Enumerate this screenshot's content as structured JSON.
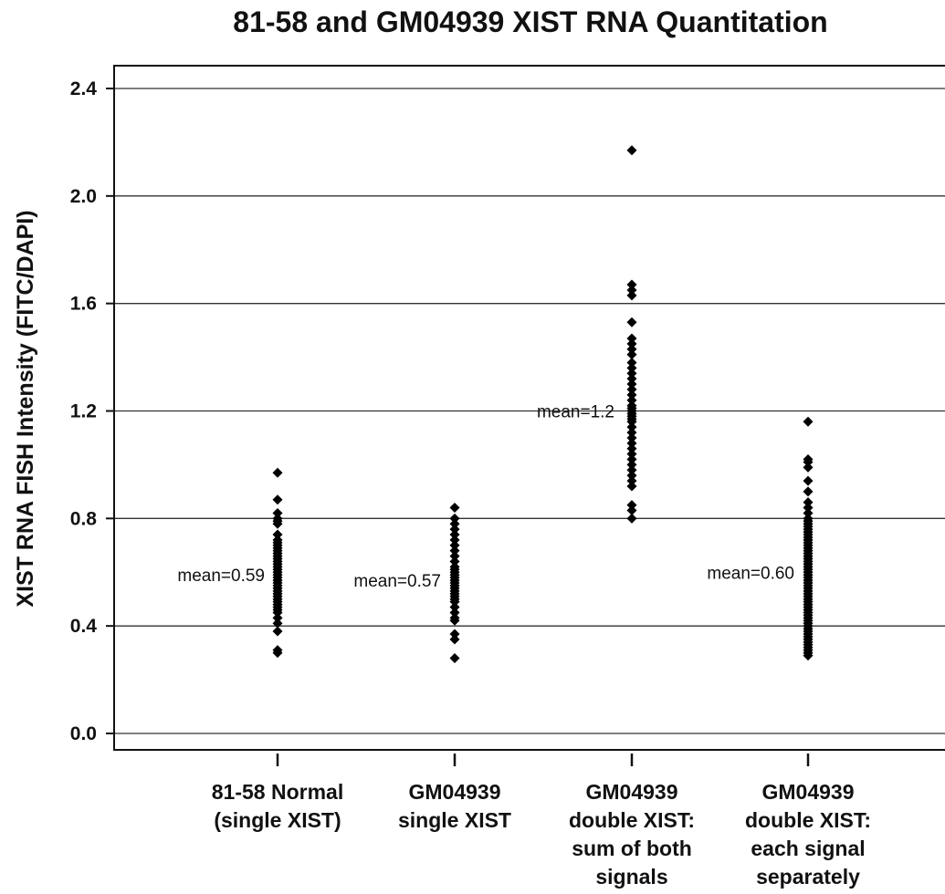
{
  "chart_data": {
    "type": "scatter",
    "title": "81-58 and GM04939 XIST RNA Quantitation",
    "ylabel": "XIST RNA FISH Intensity (FITC/DAPI)",
    "xlabel": "",
    "ylim": [
      0,
      2.4
    ],
    "yticks": [
      "0.0",
      "0.4",
      "0.8",
      "1.2",
      "1.6",
      "2.0",
      "2.4"
    ],
    "grid": true,
    "categories": [
      {
        "lines": [
          "81-58 Normal",
          "(single XIST)"
        ]
      },
      {
        "lines": [
          "GM04939",
          "single XIST"
        ]
      },
      {
        "lines": [
          "GM04939",
          "double XIST:",
          "sum of both",
          "signals"
        ]
      },
      {
        "lines": [
          "GM04939",
          "double XIST:",
          "each signal",
          "separately"
        ]
      }
    ],
    "series": [
      {
        "mean_label": "mean=0.59",
        "mean": 0.59,
        "values": [
          0.97,
          0.87,
          0.82,
          0.8,
          0.79,
          0.78,
          0.74,
          0.72,
          0.71,
          0.7,
          0.69,
          0.68,
          0.67,
          0.66,
          0.65,
          0.64,
          0.63,
          0.62,
          0.61,
          0.6,
          0.59,
          0.58,
          0.57,
          0.56,
          0.55,
          0.54,
          0.53,
          0.52,
          0.51,
          0.5,
          0.49,
          0.48,
          0.47,
          0.46,
          0.45,
          0.43,
          0.41,
          0.38,
          0.31,
          0.3
        ]
      },
      {
        "mean_label": "mean=0.57",
        "mean": 0.57,
        "values": [
          0.84,
          0.8,
          0.78,
          0.76,
          0.74,
          0.72,
          0.7,
          0.68,
          0.66,
          0.64,
          0.62,
          0.61,
          0.6,
          0.59,
          0.58,
          0.57,
          0.56,
          0.55,
          0.54,
          0.53,
          0.52,
          0.51,
          0.5,
          0.49,
          0.47,
          0.45,
          0.43,
          0.42,
          0.37,
          0.35,
          0.28
        ]
      },
      {
        "mean_label": "mean=1.2",
        "mean": 1.2,
        "values": [
          2.17,
          1.67,
          1.65,
          1.63,
          1.53,
          1.47,
          1.45,
          1.43,
          1.41,
          1.38,
          1.36,
          1.34,
          1.32,
          1.3,
          1.28,
          1.26,
          1.24,
          1.22,
          1.21,
          1.2,
          1.19,
          1.18,
          1.17,
          1.16,
          1.14,
          1.12,
          1.1,
          1.08,
          1.06,
          1.04,
          1.02,
          1.0,
          0.98,
          0.96,
          0.94,
          0.92,
          0.85,
          0.83,
          0.8
        ]
      },
      {
        "mean_label": "mean=0.60",
        "mean": 0.6,
        "values": [
          1.16,
          1.02,
          1.01,
          0.99,
          0.94,
          0.9,
          0.86,
          0.84,
          0.82,
          0.8,
          0.79,
          0.78,
          0.77,
          0.76,
          0.75,
          0.74,
          0.73,
          0.72,
          0.71,
          0.7,
          0.69,
          0.68,
          0.67,
          0.66,
          0.65,
          0.64,
          0.63,
          0.62,
          0.61,
          0.6,
          0.59,
          0.58,
          0.57,
          0.56,
          0.55,
          0.54,
          0.53,
          0.52,
          0.51,
          0.5,
          0.49,
          0.48,
          0.47,
          0.46,
          0.45,
          0.44,
          0.43,
          0.42,
          0.41,
          0.4,
          0.39,
          0.38,
          0.37,
          0.36,
          0.35,
          0.34,
          0.33,
          0.32,
          0.31,
          0.3,
          0.29
        ]
      }
    ],
    "marker_color": "#000000",
    "grid_color": "#333333"
  }
}
